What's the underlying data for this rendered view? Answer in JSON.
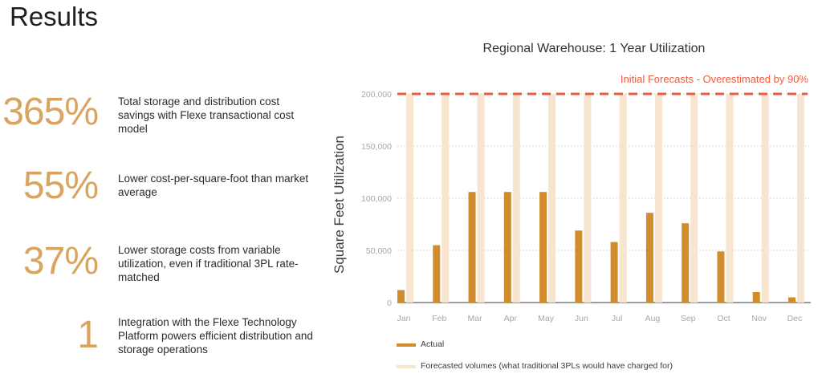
{
  "page": {
    "title": "Results"
  },
  "stats": [
    {
      "value": "365%",
      "text": "Total storage and distribution cost savings with Flexe transactional cost model"
    },
    {
      "value": "55%",
      "text": "Lower cost-per-square-foot than market average"
    },
    {
      "value": "37%",
      "text": "Lower storage costs from variable utilization, even if traditional 3PL rate-matched"
    },
    {
      "value": "1",
      "text": "Integration with the Flexe Technology Platform powers efficient distribution and storage operations"
    }
  ],
  "colors": {
    "actual": "#d18d2c",
    "forecast": "#f7e5cf",
    "forecast_line": "#f15a3a",
    "stat_value": "#d9a45f"
  },
  "chart_data": {
    "type": "bar",
    "title": "Regional Warehouse: 1 Year Utilization",
    "ylabel": "Square Feet Utilization",
    "xlabel": "",
    "ylim": [
      0,
      200000
    ],
    "yticks": [
      0,
      50000,
      100000,
      150000,
      200000
    ],
    "ytick_labels": [
      "0",
      "50,000",
      "100,000",
      "150,000",
      "200,000"
    ],
    "grid": true,
    "categories": [
      "Jan",
      "Feb",
      "Mar",
      "Apr",
      "May",
      "Jun",
      "Jul",
      "Aug",
      "Sep",
      "Oct",
      "Nov",
      "Dec"
    ],
    "series": [
      {
        "name": "Actual",
        "values": [
          12000,
          55000,
          106000,
          106000,
          106000,
          69000,
          58000,
          86000,
          76000,
          49000,
          10000,
          5000
        ]
      },
      {
        "name": "Forecasted volumes (what traditional 3PLs would have charged for)",
        "values": [
          200000,
          200000,
          200000,
          200000,
          200000,
          200000,
          200000,
          200000,
          200000,
          200000,
          200000,
          200000
        ]
      }
    ],
    "reference_line": {
      "value": 200000,
      "label": "Initial Forecasts - Overestimated by 90%"
    },
    "legend_position": "bottom-left"
  }
}
